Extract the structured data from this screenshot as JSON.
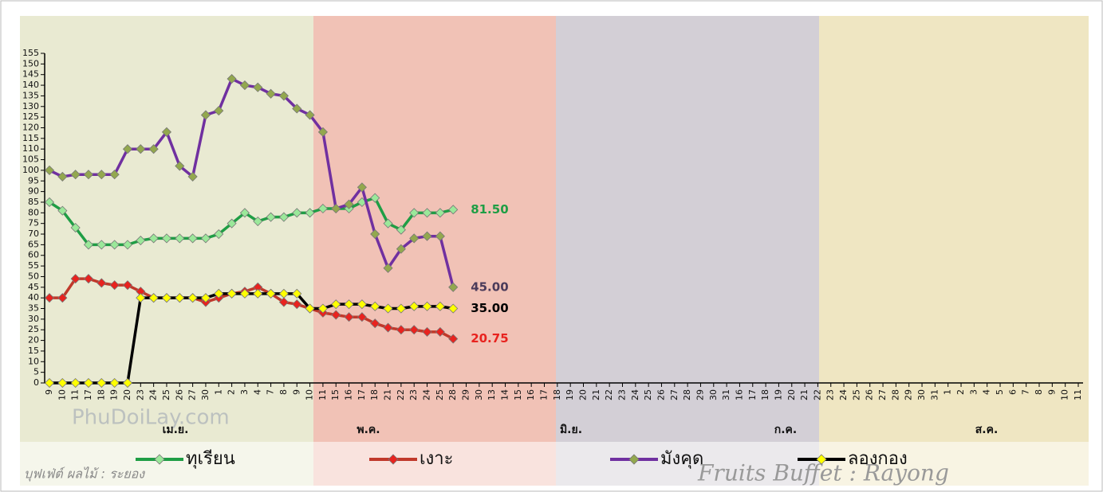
{
  "chart_data": {
    "type": "line",
    "categories": [
      "9",
      "10",
      "11",
      "17",
      "18",
      "19",
      "20",
      "23",
      "24",
      "25",
      "26",
      "27",
      "30",
      "1",
      "2",
      "3",
      "4",
      "7",
      "8",
      "9",
      "10",
      "11",
      "15",
      "16",
      "17",
      "18",
      "21",
      "22",
      "23",
      "24",
      "25",
      "28",
      "29",
      "30",
      "13",
      "14",
      "15",
      "16",
      "17",
      "18",
      "19",
      "20",
      "21",
      "22",
      "23",
      "24",
      "25",
      "26",
      "27",
      "28",
      "29",
      "30",
      "31",
      "16",
      "17",
      "18",
      "19",
      "20",
      "21",
      "22",
      "23",
      "24",
      "25",
      "26",
      "27",
      "28",
      "29",
      "30",
      "31",
      "1",
      "2",
      "3",
      "4",
      "5",
      "6",
      "7",
      "8",
      "9",
      "10",
      "11"
    ],
    "month_labels": [
      "เม.ย.",
      "พ.ค.",
      "มิ.ย.",
      "ก.ค.",
      "ส.ค."
    ],
    "ylim": [
      0,
      155
    ],
    "yticks": [
      0,
      5,
      10,
      15,
      20,
      25,
      30,
      35,
      40,
      45,
      50,
      55,
      60,
      65,
      70,
      75,
      80,
      85,
      90,
      95,
      100,
      105,
      110,
      115,
      120,
      125,
      130,
      135,
      140,
      145,
      150,
      155
    ],
    "watermarks": [
      "PhuDoiLay.com",
      "บุฟเฟ่ต์ ผลไม้ : ระยอง",
      "Fruits Buffet : Rayong"
    ],
    "series": [
      {
        "name": "ทุเรียน",
        "color": "#1f9e45",
        "marker_color": "#9be89a",
        "label_color": "#1f9e45",
        "values": [
          85,
          81,
          73,
          65,
          65,
          65,
          65,
          67,
          68,
          68,
          68,
          68,
          68,
          70,
          75,
          80,
          76,
          78,
          78,
          80,
          80,
          82,
          82,
          82,
          85,
          87,
          75,
          72,
          80,
          80,
          80,
          81.5,
          null,
          null,
          null,
          null,
          null,
          null,
          null,
          null,
          null,
          null,
          null,
          null,
          null,
          null,
          null,
          null,
          null,
          null,
          null,
          null,
          null,
          null,
          null,
          null,
          null,
          null,
          null,
          null,
          null,
          null,
          null,
          null,
          null,
          null,
          null,
          null,
          null,
          null,
          null,
          null,
          null,
          null,
          null,
          null,
          null,
          null,
          null,
          null
        ],
        "value_labels": [
          null,
          null,
          null,
          null,
          null,
          null,
          null,
          null,
          null,
          null,
          null,
          null,
          null,
          null,
          null,
          null,
          null,
          null,
          null,
          null,
          null,
          null,
          null,
          null,
          null,
          null,
          null,
          null,
          null,
          null,
          null,
          "81.50",
          null,
          null,
          null,
          null,
          null,
          null,
          null,
          null,
          null,
          null,
          null,
          null,
          null,
          null,
          null,
          null,
          null,
          null,
          null,
          null,
          null,
          null,
          null,
          null,
          null,
          null,
          null,
          null,
          null,
          null,
          null,
          null,
          null,
          null,
          null,
          null,
          null,
          null,
          null,
          null,
          null,
          null,
          null,
          null,
          null,
          null,
          null,
          null
        ]
      },
      {
        "name": "เงาะ",
        "color": "#c0392b",
        "marker_color": "#e8231f",
        "label_color": "#e8231f",
        "values": [
          40,
          40,
          49,
          49,
          47,
          46,
          46,
          43,
          40,
          40,
          40,
          40,
          38,
          40,
          42,
          43,
          45,
          42,
          38,
          37,
          35,
          33,
          32,
          31,
          31,
          28,
          26,
          25,
          25,
          24,
          24,
          20.75,
          null,
          null,
          null,
          null,
          null,
          null,
          null,
          null,
          null,
          null,
          null,
          null,
          null,
          null,
          null,
          null,
          null,
          null,
          null,
          null,
          null,
          null,
          null,
          null,
          null,
          null,
          null,
          null,
          null,
          null,
          null,
          null,
          null,
          null,
          null,
          null,
          null,
          null,
          null,
          null,
          null,
          null,
          null,
          null,
          null,
          null,
          null,
          null
        ],
        "value_labels": [
          null,
          null,
          null,
          null,
          null,
          null,
          null,
          null,
          null,
          null,
          null,
          null,
          null,
          null,
          null,
          null,
          null,
          null,
          null,
          null,
          null,
          null,
          null,
          null,
          null,
          null,
          null,
          null,
          null,
          null,
          null,
          "20.75",
          null,
          null,
          null,
          null,
          null,
          null,
          null,
          null,
          null,
          null,
          null,
          null,
          null,
          null,
          null,
          null,
          null,
          null,
          null,
          null,
          null,
          null,
          null,
          null,
          null,
          null,
          null,
          null,
          null,
          null,
          null,
          null,
          null,
          null,
          null,
          null,
          null,
          null,
          null,
          null,
          null,
          null,
          null,
          null,
          null,
          null,
          null,
          null
        ]
      },
      {
        "name": "มังคุด",
        "color": "#7030a0",
        "marker_color": "#93a84e",
        "label_color": "#4b3b5a",
        "values": [
          100,
          97,
          98,
          98,
          98,
          98,
          110,
          110,
          110,
          118,
          102,
          97,
          126,
          128,
          143,
          140,
          139,
          136,
          135,
          129,
          126,
          118,
          82,
          84,
          92,
          70,
          54,
          63,
          68,
          69,
          69,
          45,
          null,
          null,
          null,
          null,
          null,
          null,
          null,
          null,
          null,
          null,
          null,
          null,
          null,
          null,
          null,
          null,
          null,
          null,
          null,
          null,
          null,
          null,
          null,
          null,
          null,
          null,
          null,
          null,
          null,
          null,
          null,
          null,
          null,
          null,
          null,
          null,
          null,
          null,
          null,
          null,
          null,
          null,
          null,
          null,
          null,
          null,
          null,
          null
        ],
        "value_labels": [
          null,
          null,
          null,
          null,
          null,
          null,
          null,
          null,
          null,
          null,
          null,
          null,
          null,
          null,
          null,
          null,
          null,
          null,
          null,
          null,
          null,
          null,
          null,
          null,
          null,
          null,
          null,
          null,
          null,
          null,
          null,
          "45.00",
          null,
          null,
          null,
          null,
          null,
          null,
          null,
          null,
          null,
          null,
          null,
          null,
          null,
          null,
          null,
          null,
          null,
          null,
          null,
          null,
          null,
          null,
          null,
          null,
          null,
          null,
          null,
          null,
          null,
          null,
          null,
          null,
          null,
          null,
          null,
          null,
          null,
          null,
          null,
          null,
          null,
          null,
          null,
          null,
          null,
          null,
          null,
          null
        ]
      },
      {
        "name": "ลองกอง",
        "color": "#000000",
        "marker_color": "#ffff00",
        "label_color": "#000000",
        "values": [
          0,
          0,
          0,
          0,
          0,
          0,
          0,
          40,
          40,
          40,
          40,
          40,
          40,
          42,
          42,
          42,
          42,
          42,
          42,
          42,
          35,
          35,
          37,
          37,
          37,
          36,
          35,
          35,
          36,
          36,
          36,
          35,
          null,
          null,
          null,
          null,
          null,
          null,
          null,
          null,
          null,
          null,
          null,
          null,
          null,
          null,
          null,
          null,
          null,
          null,
          null,
          null,
          null,
          null,
          null,
          null,
          null,
          null,
          null,
          null,
          null,
          null,
          null,
          null,
          null,
          null,
          null,
          null,
          null,
          null,
          null,
          null,
          null,
          null,
          null,
          null,
          null,
          null,
          null,
          null
        ],
        "value_labels": [
          null,
          null,
          null,
          null,
          null,
          null,
          null,
          null,
          null,
          null,
          null,
          null,
          null,
          null,
          null,
          null,
          null,
          null,
          null,
          null,
          null,
          null,
          null,
          null,
          null,
          null,
          null,
          null,
          null,
          null,
          null,
          "35.00",
          null,
          null,
          null,
          null,
          null,
          null,
          null,
          null,
          null,
          null,
          null,
          null,
          null,
          null,
          null,
          null,
          null,
          null,
          null,
          null,
          null,
          null,
          null,
          null,
          null,
          null,
          null,
          null,
          null,
          null,
          null,
          null,
          null,
          null,
          null,
          null,
          null,
          null,
          null,
          null,
          null,
          null,
          null,
          null,
          null,
          null,
          null,
          null
        ]
      }
    ]
  }
}
